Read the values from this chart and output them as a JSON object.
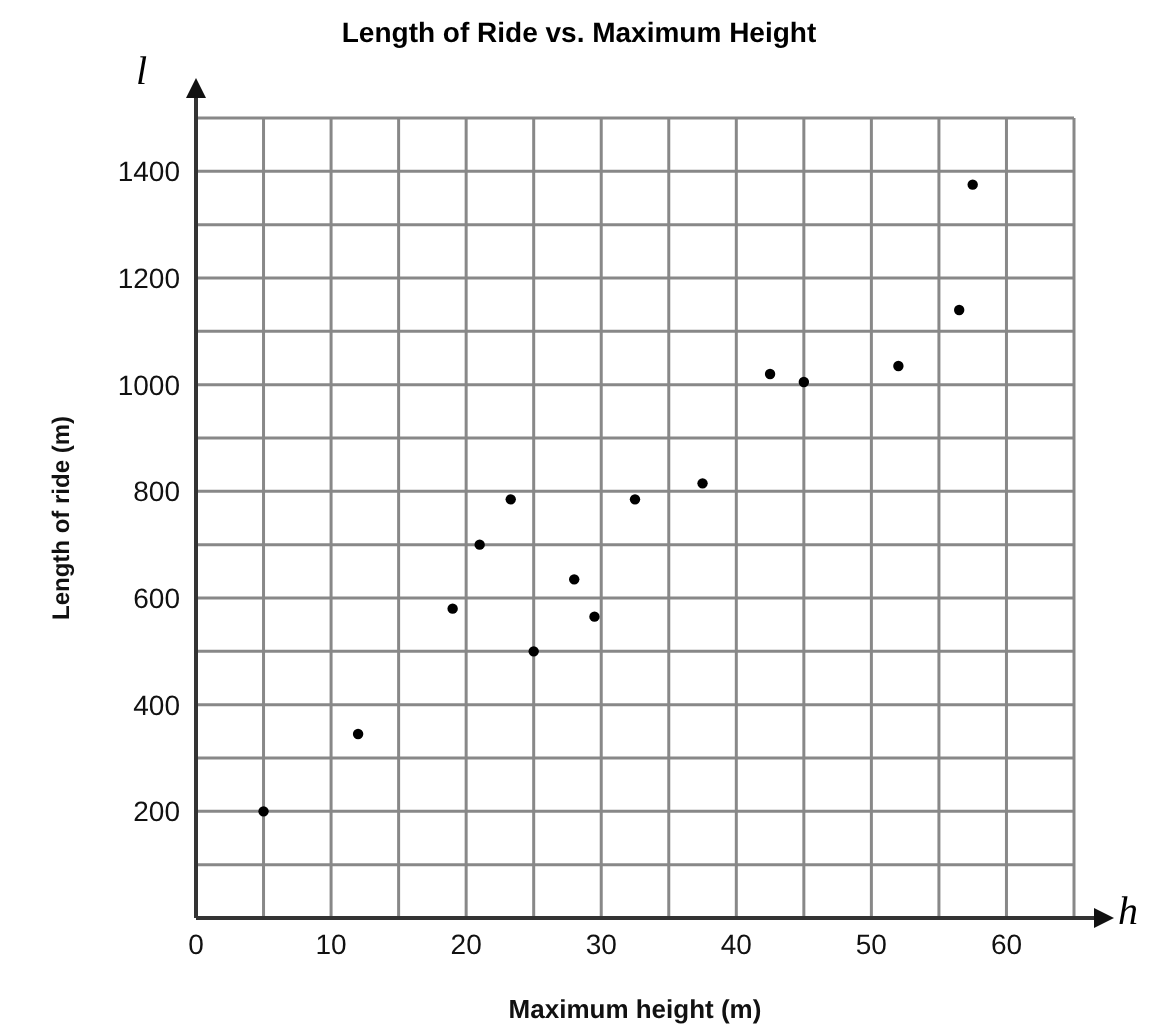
{
  "chart_data": {
    "type": "scatter",
    "title": "Length of Ride vs. Maximum Height",
    "xlabel": "Maximum height (m)",
    "ylabel": "Length of ride (m)",
    "annotations": [
      "l",
      "h"
    ],
    "x": [
      5,
      12,
      19,
      21,
      23.3,
      25,
      28,
      29.5,
      32.5,
      37.5,
      42.5,
      45,
      52,
      56.5,
      57.5
    ],
    "values": [
      200,
      345,
      580,
      700,
      785,
      500,
      635,
      565,
      785,
      815,
      1020,
      1005,
      1035,
      1140,
      1375
    ],
    "color": "#000000",
    "marker": "circle",
    "grid": true,
    "xlim": [
      0,
      65
    ],
    "xticks": [
      0,
      {
        "value": 5,
        "label": null
      },
      10,
      {
        "value": 15,
        "label": null
      },
      20,
      {
        "value": 25,
        "label": null
      },
      30,
      {
        "value": 35,
        "label": null
      },
      40,
      {
        "value": 45,
        "label": null
      },
      50,
      {
        "value": 55,
        "label": null
      },
      60,
      {
        "value": 65,
        "label": null
      }
    ],
    "ylim": [
      0,
      1500
    ],
    "yticks": [
      {
        "value": 0,
        "label": null
      },
      {
        "value": 100,
        "label": null
      },
      200,
      {
        "value": 300,
        "label": null
      },
      400,
      {
        "value": 500,
        "label": null
      },
      600,
      {
        "value": 700,
        "label": null
      },
      800,
      {
        "value": 900,
        "label": null
      },
      1000,
      {
        "value": 1100,
        "label": null
      },
      1200,
      {
        "value": 1300,
        "label": null
      },
      1400,
      {
        "value": 1500,
        "label": null
      }
    ]
  }
}
